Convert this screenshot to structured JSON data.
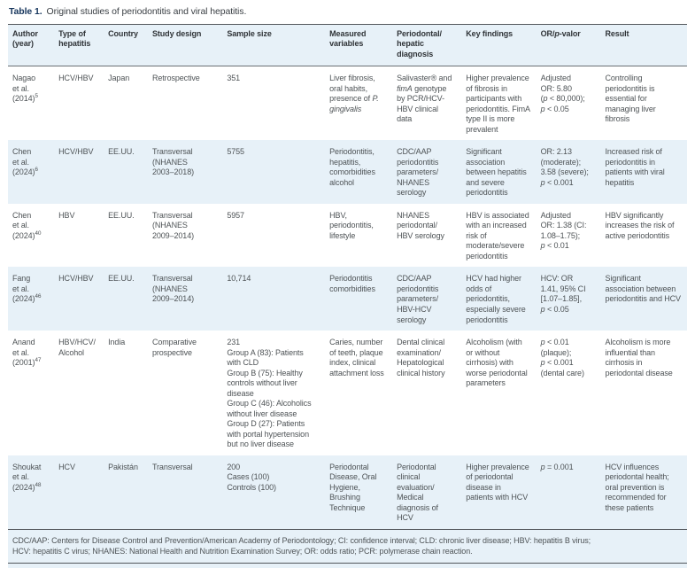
{
  "title": {
    "label": "Table 1.",
    "text": "Original studies of periodontitis and viral hepatitis."
  },
  "accent_colors": {
    "title_navy": "#17365d",
    "band_blue": "#e7f1f8",
    "rule_gray": "#53575c"
  },
  "table": {
    "columns": [
      {
        "key": "author",
        "label": "Author\n(year)"
      },
      {
        "key": "hepatitis",
        "label": "Type of\nhepatitis"
      },
      {
        "key": "country",
        "label": "Country"
      },
      {
        "key": "design",
        "label": "Study design"
      },
      {
        "key": "sample",
        "label": "Sample size"
      },
      {
        "key": "variables",
        "label": "Measured\nvariables"
      },
      {
        "key": "diagnosis",
        "label": "Periodontal/\nhepatic\ndiagnosis"
      },
      {
        "key": "findings",
        "label": "Key findings"
      },
      {
        "key": "or_p",
        "label": "OR/*p*-valor"
      },
      {
        "key": "result",
        "label": "Result"
      }
    ],
    "rows": [
      {
        "author": "Nagao\net al.\n(2014)",
        "ref": "5",
        "hepatitis": "HCV/HBV",
        "country": "Japan",
        "design": "Retrospective",
        "sample": "351",
        "variables": "Liver fibrosis, oral habits, presence of *P. gingivalis*",
        "diagnosis": "Salivaster® and *fimA* genotype by PCR/HCV-HBV clinical data",
        "findings": "Higher prevalence of fibrosis in participants with periodontitis. FimA type II is more prevalent",
        "or_p": "Adjusted\nOR: 5.80\n(*p* < 80,000);\n*p* < 0.05",
        "result": "Controlling periodontitis is essential for managing liver fibrosis"
      },
      {
        "author": "Chen\net al.\n(2024)",
        "ref": "6",
        "hepatitis": "HCV/HBV",
        "country": "EE.UU.",
        "design": "Transversal\n(NHANES\n2003–2018)",
        "sample": "5755",
        "variables": "Periodontitis, hepatitis, comorbidities alcohol",
        "diagnosis": "CDC/AAP\nperiodontitis\nparameters/\nNHANES\nserology",
        "findings": "Significant association between hepatitis and severe periodontitis",
        "or_p": "OR: 2.13\n(moderate);\n3.58 (severe);\n*p* < 0.001",
        "result": "Increased risk of periodontitis in patients with viral hepatitis"
      },
      {
        "author": "Chen\net al.\n(2024)",
        "ref": "40",
        "hepatitis": "HBV",
        "country": "EE.UU.",
        "design": "Transversal\n(NHANES\n2009–2014)",
        "sample": "5957",
        "variables": "HBV, periodontitis, lifestyle",
        "diagnosis": "NHANES\nperiodontal/\nHBV serology",
        "findings": "HBV is associated with an increased risk of moderate/severe periodontitis",
        "or_p": "Adjusted\nOR: 1.38 (CI:\n1.08–1.75);\n*p* < 0.01",
        "result": "HBV significantly increases the risk of active periodontitis"
      },
      {
        "author": "Fang\net al.\n(2024)",
        "ref": "46",
        "hepatitis": "HCV/HBV",
        "country": "EE.UU.",
        "design": "Transversal\n(NHANES\n2009–2014)",
        "sample": "10,714",
        "variables": "Periodontitis comorbidities",
        "diagnosis": "CDC/AAP\nperiodontitis\nparameters/\nHBV-HCV\nserology",
        "findings": "HCV had higher odds of periodontitis, especially severe periodontitis",
        "or_p": "HCV: OR\n1.41, 95% CI\n[1.07–1.85],\n*p* < 0.05",
        "result": "Significant association between periodontitis and HCV"
      },
      {
        "author": "Anand\net al.\n(2001)",
        "ref": "47",
        "hepatitis": "HBV/HCV/\nAlcohol",
        "country": "India",
        "design": "Comparative\nprospective",
        "sample": "231\nGroup A (83): Patients with CLD\nGroup B (75): Healthy controls without liver disease\nGroup C (46): Alcoholics without liver disease\nGroup D (27): Patients with portal hypertension but no liver disease",
        "variables": "Caries, number of teeth, plaque index, clinical attachment loss",
        "diagnosis": "Dental clinical\nexamination/\nHepatological\nclinical history",
        "findings": "Alcoholism (with or without cirrhosis) with worse periodontal parameters",
        "or_p": "*p* < 0.01\n(plaque);\n*p* < 0.001\n(dental care)",
        "result": "Alcoholism is more influential than cirrhosis in periodontal disease"
      },
      {
        "author": "Shoukat\net al.\n(2024)",
        "ref": "48",
        "hepatitis": "HCV",
        "country": "Pakistán",
        "design": "Transversal",
        "sample": "200\nCases (100)\nControls (100)",
        "variables": "Periodontal Disease, Oral Hygiene, Brushing Technique",
        "diagnosis": "Periodontal\nclinical\nevaluation/\nMedical\ndiagnosis of\nHCV",
        "findings": "Higher prevalence of periodontal disease in patients with HCV",
        "or_p": "*p* = 0.001",
        "result": "HCV influences periodontal health; oral prevention is recommended for these patients"
      }
    ]
  },
  "footnote": "CDC/AAP: Centers for Disease Control and Prevention/American Academy of Periodontology; CI: confidence interval; CLD: chronic liver disease; HBV: hepatitis B virus;\nHCV: hepatitis C virus; NHANES: National Health and Nutrition Examination Survey; OR: odds ratio; PCR: polymerase chain reaction."
}
